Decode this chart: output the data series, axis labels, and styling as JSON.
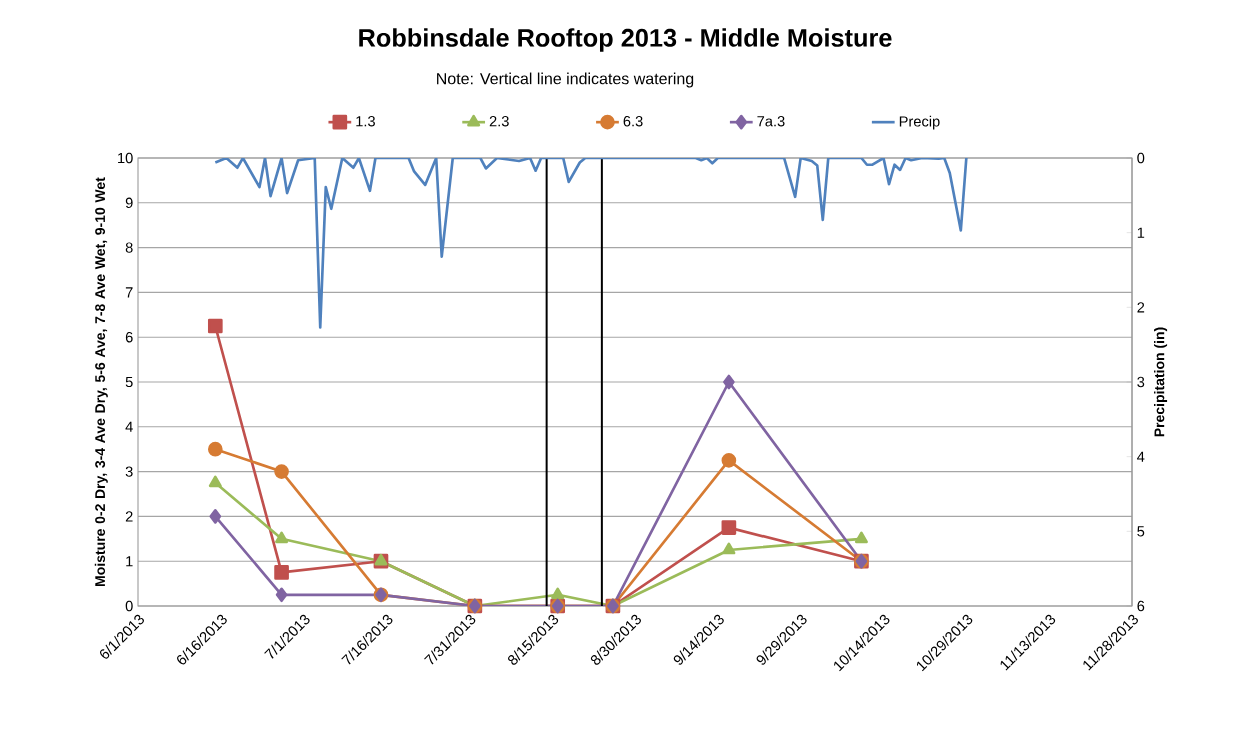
{
  "chart_data": {
    "type": "line",
    "title": "Robbinsdale Rooftop 2013 - Middle Moisture",
    "annotations": [
      "Note: Vertical line indicates watering"
    ],
    "ylabel": "Moisture 0-2 Dry, 3-4 Ave Dry, 5-6 Ave, 7-8 Ave Wet, 9-10 Wet",
    "y2label": "Precipitation (in)",
    "x": [
      "2013-06-15",
      "2013-06-27",
      "2013-07-15",
      "2013-08-01",
      "2013-08-16",
      "2013-08-26",
      "2013-09-16",
      "2013-10-10"
    ],
    "series": [
      {
        "name": "1.3",
        "color": "#c0504d",
        "marker": "square",
        "values": [
          6.25,
          0.75,
          1.0,
          0,
          0,
          0,
          1.75,
          1.0
        ]
      },
      {
        "name": "2.3",
        "color": "#9bbb59",
        "marker": "triangle",
        "values": [
          2.75,
          1.5,
          1.0,
          0,
          0.25,
          0,
          1.25,
          1.5
        ]
      },
      {
        "name": "6.3",
        "color": "#d67b33",
        "marker": "circle",
        "values": [
          3.5,
          3.0,
          0.25,
          0,
          0,
          0,
          3.25,
          1.0
        ]
      },
      {
        "name": "7a.3",
        "color": "#8064a2",
        "marker": "diamond",
        "values": [
          2.0,
          0.25,
          0.25,
          0,
          0,
          0,
          5.0,
          1.0
        ]
      },
      {
        "name": "Precip",
        "color": "#4f81bd",
        "marker": "none",
        "axis": "y2",
        "x": [
          "2013-06-15",
          "2013-06-17",
          "2013-06-19",
          "2013-06-20",
          "2013-06-23",
          "2013-06-24",
          "2013-06-25",
          "2013-06-27",
          "2013-06-28",
          "2013-06-30",
          "2013-07-03",
          "2013-07-04",
          "2013-07-05",
          "2013-07-06",
          "2013-07-08",
          "2013-07-10",
          "2013-07-11",
          "2013-07-13",
          "2013-07-14",
          "2013-07-20",
          "2013-07-21",
          "2013-07-23",
          "2013-07-25",
          "2013-07-26",
          "2013-07-28",
          "2013-08-02",
          "2013-08-03",
          "2013-08-05",
          "2013-08-09",
          "2013-08-11",
          "2013-08-12",
          "2013-08-13",
          "2013-08-17",
          "2013-08-18",
          "2013-08-20",
          "2013-08-21",
          "2013-09-10",
          "2013-09-11",
          "2013-09-12",
          "2013-09-13",
          "2013-09-14",
          "2013-09-26",
          "2013-09-28",
          "2013-09-29",
          "2013-10-01",
          "2013-10-02",
          "2013-10-03",
          "2013-10-04",
          "2013-10-10",
          "2013-10-11",
          "2013-10-12",
          "2013-10-14",
          "2013-10-15",
          "2013-10-16",
          "2013-10-17",
          "2013-10-18",
          "2013-10-19",
          "2013-10-21",
          "2013-10-24",
          "2013-10-25",
          "2013-10-26",
          "2013-10-28",
          "2013-10-29"
        ],
        "values": [
          0.06,
          0,
          0.13,
          0,
          0.39,
          0,
          0.51,
          0,
          0.47,
          0.03,
          0,
          2.27,
          0.39,
          0.68,
          0,
          0.13,
          0,
          0.44,
          0,
          0,
          0.18,
          0.36,
          0,
          1.32,
          0,
          0,
          0.14,
          0,
          0.04,
          0,
          0.17,
          0,
          0,
          0.32,
          0.06,
          0,
          0,
          0.03,
          0,
          0.07,
          0,
          0,
          0.52,
          0,
          0.04,
          0.1,
          0.83,
          0,
          0,
          0.09,
          0.09,
          0,
          0.35,
          0.09,
          0.16,
          0,
          0.03,
          0,
          0.01,
          0,
          0.2,
          0.97,
          0
        ]
      }
    ],
    "ref_lines": [
      {
        "axis": "x",
        "value": "2013-08-14",
        "color": "#000000"
      },
      {
        "axis": "x",
        "value": "2013-08-24",
        "color": "#000000"
      }
    ],
    "xlim": [
      "2013-06-01",
      "2013-11-28"
    ],
    "xticks": [
      {
        "value": "2013-06-01",
        "label": "6/1/2013"
      },
      {
        "value": "2013-06-16",
        "label": "6/16/2013"
      },
      {
        "value": "2013-07-01",
        "label": "7/1/2013"
      },
      {
        "value": "2013-07-16",
        "label": "7/16/2013"
      },
      {
        "value": "2013-07-31",
        "label": "7/31/2013"
      },
      {
        "value": "2013-08-15",
        "label": "8/15/2013"
      },
      {
        "value": "2013-08-30",
        "label": "8/30/2013"
      },
      {
        "value": "2013-09-14",
        "label": "9/14/2013"
      },
      {
        "value": "2013-09-29",
        "label": "9/29/2013"
      },
      {
        "value": "2013-10-14",
        "label": "10/14/2013"
      },
      {
        "value": "2013-10-29",
        "label": "10/29/2013"
      },
      {
        "value": "2013-11-13",
        "label": "11/13/2013"
      },
      {
        "value": "2013-11-28",
        "label": "11/28/2013"
      }
    ],
    "ylim": [
      0,
      10
    ],
    "yticks": [
      0,
      1,
      2,
      3,
      4,
      5,
      6,
      7,
      8,
      9,
      10
    ],
    "y2lim": [
      6,
      0
    ],
    "y2ticks": [
      0,
      1,
      2,
      3,
      4,
      5,
      6
    ],
    "grid": "y",
    "legend": "top",
    "line_style": "solid"
  }
}
